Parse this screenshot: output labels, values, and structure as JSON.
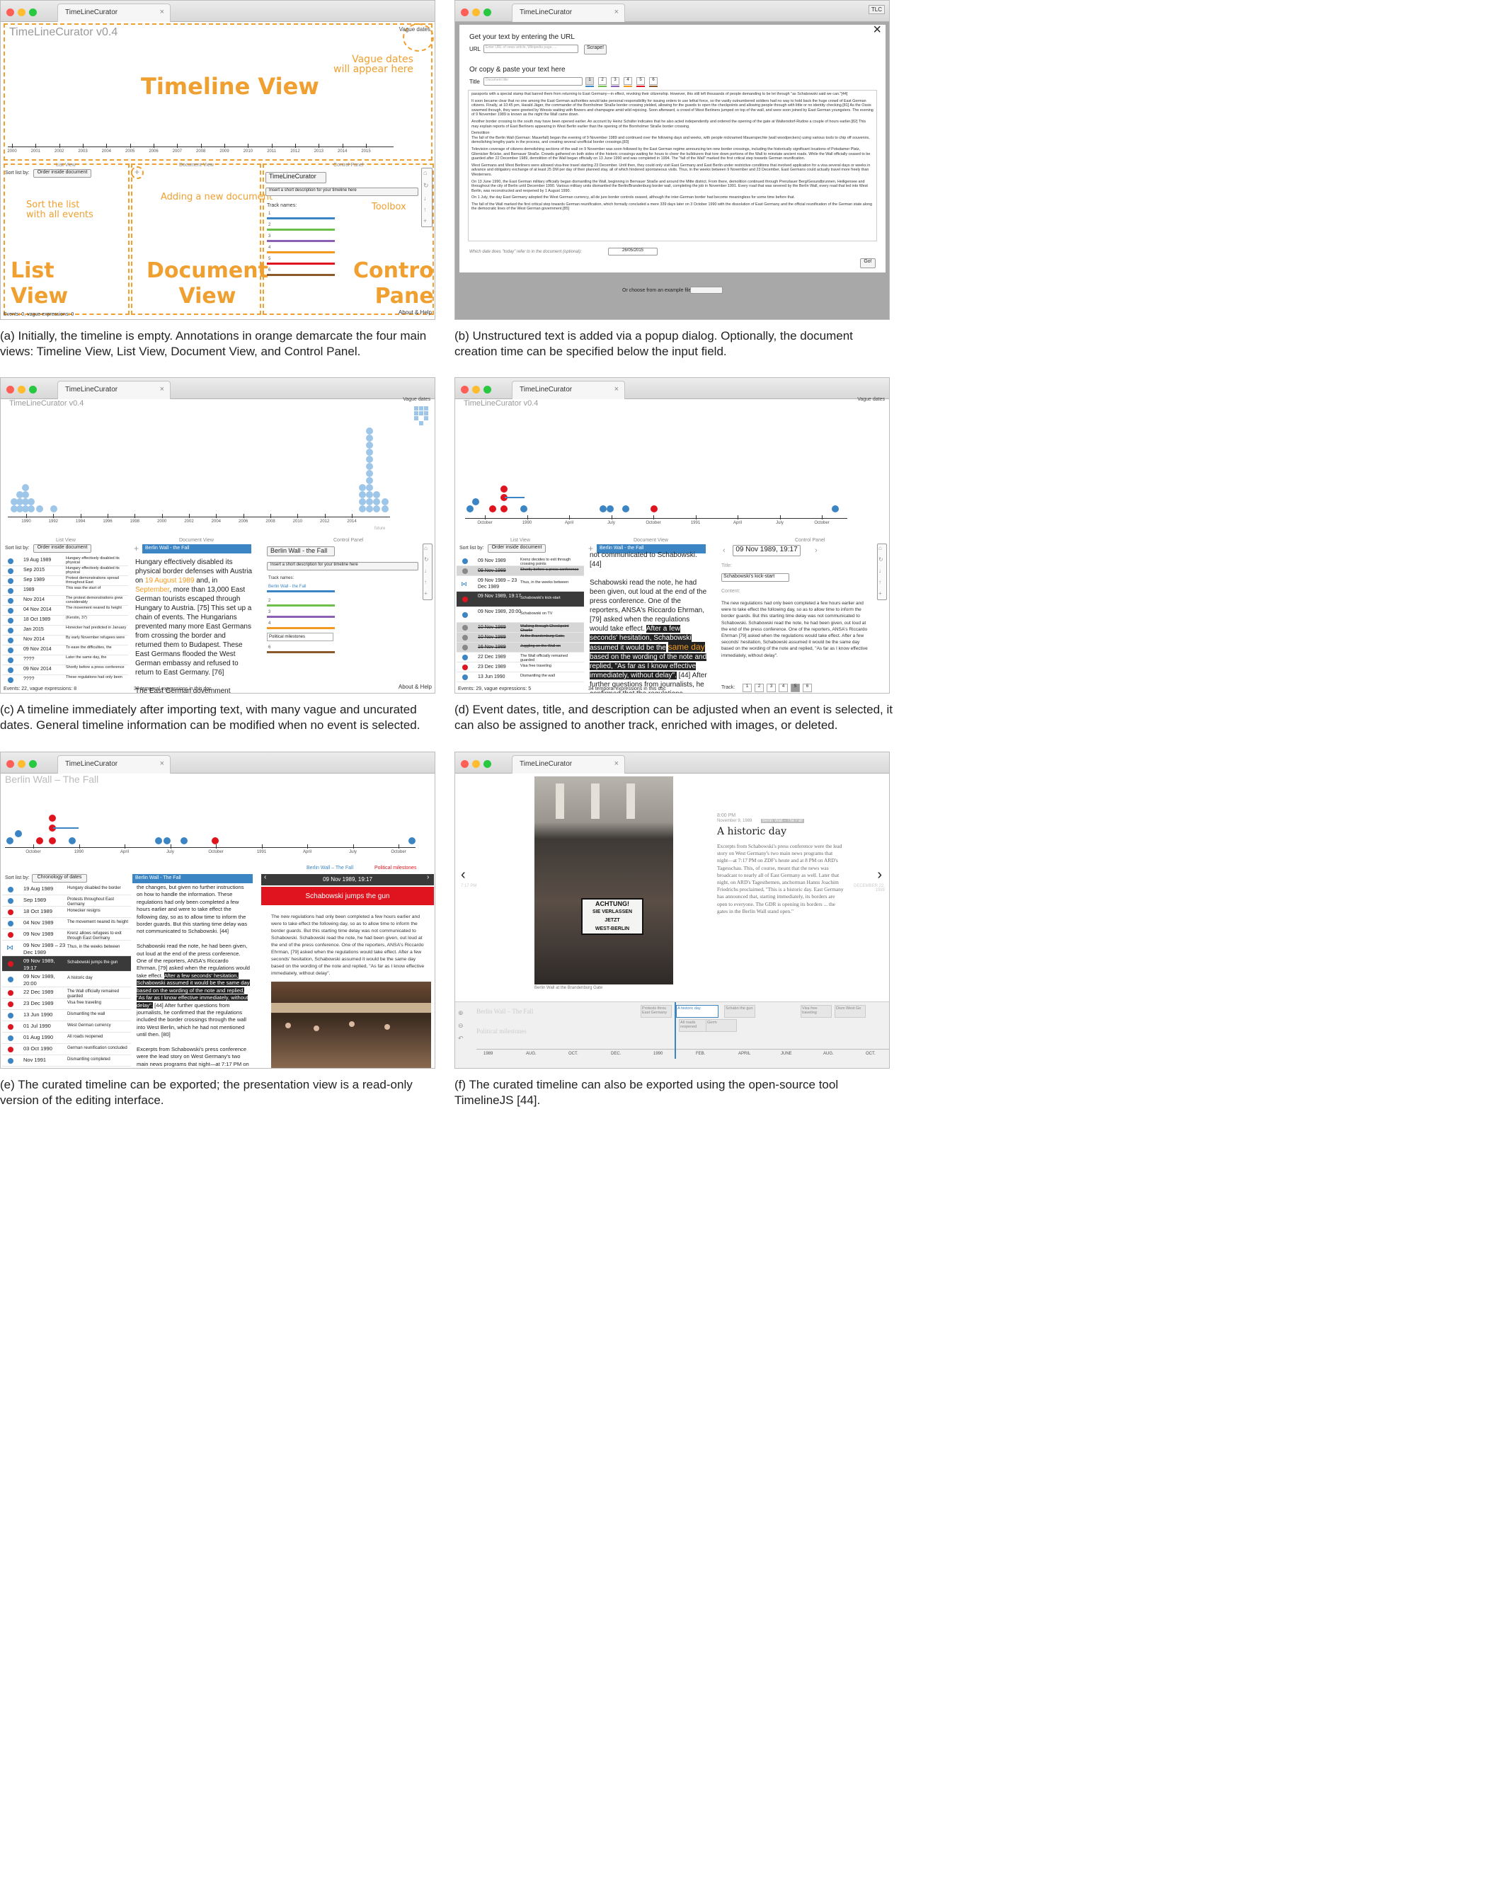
{
  "app": {
    "tab_label": "TimeLineCurator",
    "title": "TimeLineCurator v0.4",
    "vague_dates": "Vague dates",
    "close_icon": "×",
    "list_view": "List View",
    "document_view": "Document View",
    "control_panel": "Control Panel",
    "sort_label": "Sort list by:",
    "sort_value": "Order inside document",
    "description_placeholder": "Insert a short description for your timeline here",
    "track_names_label": "Track names:",
    "about_help": "About & Help"
  },
  "panel_a": {
    "axis_years": [
      "2000",
      "2001",
      "2002",
      "2003",
      "2004",
      "2005",
      "2006",
      "2007",
      "2008",
      "2009",
      "2010",
      "2011",
      "2012",
      "2013",
      "2014",
      "2015"
    ],
    "annotations": {
      "vague": "Vague dates\nwill appear here",
      "timeline": "Timeline View",
      "sort": "Sort the list\nwith all events",
      "adding": "Adding a new document",
      "toolbox": "Toolbox",
      "list": "List\nView",
      "document": "Document\nView",
      "control": "Control\nPanel"
    },
    "timeline_name": "TimeLineCurator",
    "track_numbers": [
      "1",
      "2",
      "3",
      "4",
      "5",
      "6"
    ],
    "status": "Events: 0, vague expressions: 0",
    "caption": "(a) Initially, the timeline is empty. Annotations in orange demarcate the four main views: Timeline View, List View, Document View, and Control Panel."
  },
  "panel_b": {
    "heading_url": "Get your text by entering the URL",
    "url_label": "URL",
    "url_placeholder": "Enter URL of news article, Wikipedia page, ...",
    "scrape_button": "Scrape!",
    "heading_paste": "Or copy & paste your text here",
    "title_label": "Title",
    "title_placeholder": "Document title",
    "tracks": [
      "1",
      "2",
      "3",
      "4",
      "5",
      "6"
    ],
    "text_paragraphs": [
      "passports with a special stamp that barred them from returning to East Germany—in effect, revoking their citizenship. However, this still left thousands of people demanding to be let through \"as Schabowski said we can.\"[44]",
      "It soon became clear that no one among the East German authorities would take personal responsibility for issuing orders to use lethal force, so the vastly outnumbered soldiers had no way to hold back the huge crowd of East German citizens. Finally, at 10:45 pm, Harald Jäger, the commander of the Bornholmer Straße border crossing yielded, allowing for the guards to open the checkpoints and allowing people through with little or no identity checking.[81] As the Ossis swarmed through, they were greeted by Wessis waiting with flowers and champagne amid wild rejoicing. Soon afterward, a crowd of West Berliners jumped on top of the wall, and were soon joined by East German youngsters. The evening of 9 November 1989 is known as the night the Wall came down.",
      "Another border crossing to the south may have been opened earlier. An account by Heinz Schäfer indicates that he also acted independently and ordered the opening of the gate at Waltersdorf-Rudow a couple of hours earlier.[82] This may explain reports of East Berliners appearing in West Berlin earlier than the opening of the Bornholmer Straße border crossing.",
      "Demolition\nThe fall of the Berlin Wall (German: Mauerfall) began the evening of 9 November 1989 and continued over the following days and weeks, with people nicknamed Mauerspechte (wall woodpeckers) using various tools to chip off souvenirs, demolishing lengthy parts in the process, and creating several unofficial border crossings.[83]",
      "Television coverage of citizens demolishing sections of the wall on 9 November was soon followed by the East German regime announcing ten new border crossings, including the historically significant locations of Potsdamer Platz, Glienicker Brücke, and Bernauer Straße. Crowds gathered on both sides of the historic crossings waiting for hours to cheer the bulldozers that tore down portions of the Wall to reinstate ancient roads. While the Wall officially ceased to be guarded after 22 December 1989, demolition of the Wall began officially on 13 June 1990 and was completed in 1994. The \"fall of the Wall\" marked the first critical step towards German reunification.",
      "West Germans and West Berliners were allowed visa-free travel starting 23 December. Until then, they could only visit East Germany and East Berlin under restrictive conditions that involved application for a visa several days or weeks in advance and obligatory exchange of at least 25 DM per day of their planned stay, all of which hindered spontaneous visits. Thus, in the weeks between 9 November and 23 December, East Germans could actually travel more freely than Westerners.",
      "On 13 June 1990, the East German military officially began dismantling the Wall, beginning in Bernauer Straße and around the Mitte district. From there, demolition continued through Prenzlauer Berg/Gesundbrunnen, Heiligensee and throughout the city of Berlin until December 1990. Various military units dismantled the Berlin/Brandenburg border wall, completing the job in November 1991. Every road that was severed by the Berlin Wall, every road that led into West Berlin, was reconstructed and reopened by 1 August 1990.",
      "On 1 July, the day East Germany adopted the West German currency, all de jure border controls ceased, although the inter-German border had become meaningless for some time before that.",
      "The fall of the Wall marked the first critical step towards German reunification, which formally concluded a mere 339 days later on 3 October 1990 with the dissolution of East Germany and the official reunification of the German state along the democratic lines of the West German government.[85]"
    ],
    "date_question": "Which date does \"today\" refer to in the document (optional):",
    "date_value": "26/05/2015",
    "go_button": "Go!",
    "example_label": "Or choose from an example file",
    "tlc_badge": "TLC",
    "caption": "(b) Unstructured text is added via a popup dialog. Optionally, the document creation time can be specified below the input field."
  },
  "panel_c": {
    "axis_years": [
      "1990",
      "1992",
      "1994",
      "1996",
      "1998",
      "2000",
      "2002",
      "2004",
      "2006",
      "2008",
      "2010",
      "2012",
      "2014"
    ],
    "axis_far": "future",
    "doc_tab": "Berlin Wall - the Fall",
    "timeline_name": "Berlin Wall - the Fall",
    "track1": "Berlin Wall - the Fall",
    "track5": "Political milestones",
    "track_numbers": [
      "2",
      "3",
      "4",
      "6"
    ],
    "list": [
      {
        "date": "19 Aug 1989",
        "desc": "Hungary effectively disabled its physical"
      },
      {
        "date": "Sep 2015",
        "desc": "Hungary effectively disabled its physical"
      },
      {
        "date": "Sep 1989",
        "desc": "Protest demonstrations spread throughout East"
      },
      {
        "date": "1989",
        "desc": "This was the start of"
      },
      {
        "date": "Nov 2014",
        "desc": "The protest demonstrations grew considerably"
      },
      {
        "date": "04 Nov 2014",
        "desc": "The movement neared its height"
      },
      {
        "date": "18 Oct 1989",
        "desc": "(Kerstin, 37)"
      },
      {
        "date": "Jan 2015",
        "desc": "Honecker had predicted in January"
      },
      {
        "date": "Nov 2014",
        "desc": "By early November refugees were"
      },
      {
        "date": "09 Nov 2014",
        "desc": "To ease the difficulties, the"
      },
      {
        "date": "????",
        "desc": "Later the same day, the"
      },
      {
        "date": "09 Nov 2014",
        "desc": "Shortly before a press conference"
      },
      {
        "date": "????",
        "desc": "These regulations had only been"
      }
    ],
    "doc_text_pre": "Hungary effectively disabled its physical border defenses with Austria on ",
    "doc_date1": "19 August 1989",
    "doc_text_mid": " and, in ",
    "doc_date2": "September",
    "doc_text_post": ", more than 13,000 East German tourists escaped through Hungary to Austria. [75] This set up a chain of events. The Hungarians prevented many more East Germans from crossing the border and returned them to Budapest. These East Germans flooded the West German embassy and refused to return to East Germany. [76]",
    "doc_text_end": "The East German government",
    "status_list": "Events: 22, vague expressions: 8",
    "status_doc": "30 temporal expressions in this doc",
    "caption": "(c) A timeline immediately after importing text, with many vague and uncurated dates. General timeline information can be modified when no event is selected."
  },
  "panel_d": {
    "axis_labels": [
      "October",
      "1990",
      "April",
      "July",
      "October",
      "1991",
      "April",
      "July",
      "October"
    ],
    "list": [
      {
        "date": "09 Nov 1989",
        "desc": "Krenz decides to exit through crossing points",
        "state": "ok"
      },
      {
        "date": "09 Nov 1989",
        "desc": "Shortly before a press conference",
        "state": "struck"
      },
      {
        "date": "09 Nov 1989 – 23 Dec 1989",
        "desc": "Thus, in the weeks between",
        "state": "range"
      },
      {
        "date": "09 Nov 1989, 19:17",
        "desc": "Schabowski's kick-start",
        "state": "selected"
      },
      {
        "date": "09 Nov 1989, 20:00",
        "desc": "Schabowski on TV",
        "state": "ok"
      },
      {
        "date": "10 Nov 1989",
        "desc": "Walking through Checkpoint Charlie",
        "state": "struck"
      },
      {
        "date": "10 Nov 1989",
        "desc": "At the Brandenburg Gate,",
        "state": "struck"
      },
      {
        "date": "16 Nov 1989",
        "desc": "Juggling on the Wall on",
        "state": "struck"
      },
      {
        "date": "22 Dec 1989",
        "desc": "The Wall officially remained guarded",
        "state": "ok"
      },
      {
        "date": "23 Dec 1989",
        "desc": "Visa free traveling",
        "state": "red"
      },
      {
        "date": "13 Jun 1990",
        "desc": "Dismantling the wall",
        "state": "ok"
      }
    ],
    "list_top": "Hungary ... physical",
    "doc_tab": "Berlin Wall - the Fall",
    "doc_top": "not communicated to Schabowski. [44]",
    "doc_p1": "Schabowski read the note, he had been given, out loud at the end of the press conference. One of the reporters, ANSA's Riccardo Ehrman, [79] asked when the regulations would take effect.",
    "doc_hl1": "After a few seconds' hesitation, Schabowski assumed it would be the",
    "doc_same_day": "same day",
    "doc_hl2": "based on the wording of the note and replied, \"As far as I know effective immediately, without delay\".",
    "doc_p2": "[44] After further questions from journalists, he confirmed that the regulations included the border crossings through the wall",
    "event_date": "09 Nov 1989, 19:17",
    "title_label": "Title:",
    "title_value": "Schabowski's kick-start",
    "content_label": "Content:",
    "content": "The new regulations had only been completed a few hours earlier and were to take effect the following day, so as to allow time to inform the border guards. But this starting time delay was not communicated to Schabowski. Schabowski read the note, he had been given, out loud at the end of the press conference. One of the reporters, ANSA's Riccardo Ehrman [79] asked when the regulations would take effect. After a few seconds' hesitation, Schabowski assumed it would be the same day based on the wording of the note and replied, \"As far as I know effective immediately, without delay\".",
    "track_label": "Track:",
    "tracks": [
      "1",
      "2",
      "3",
      "4",
      "5",
      "6"
    ],
    "status_list": "Events: 29, vague expressions: 5",
    "status_doc": "34 temporal expressions in this doc",
    "caption": "(d) Event dates, title, and description can be adjusted when an event is selected, it can also be assigned to another track, enriched with images, or deleted."
  },
  "panel_e": {
    "title": "Berlin Wall – The Fall",
    "axis_labels": [
      "October",
      "1990",
      "April",
      "July",
      "October",
      "1991",
      "April",
      "July",
      "October"
    ],
    "sort_value": "Chronology of dates",
    "doc_tab": "Berlin Wall - The Fall",
    "legend1": "Berlin Wall – The Fall",
    "legend2": "Political milestones",
    "list": [
      {
        "date": "19 Aug 1989",
        "desc": "Hungary disabled the border",
        "c": "blue"
      },
      {
        "date": "Sep 1989",
        "desc": "Protests throughout East Germany",
        "c": "blue"
      },
      {
        "date": "18 Oct 1989",
        "desc": "Honecker resigns",
        "c": "red"
      },
      {
        "date": "04 Nov 1989",
        "desc": "The movement neared its height",
        "c": "blue"
      },
      {
        "date": "09 Nov 1989",
        "desc": "Krenz allows refugees to exit through East Germany",
        "c": "red"
      },
      {
        "date": "09 Nov 1989 – 23 Dec 1989",
        "desc": "Thus, in the weeks between",
        "c": "range"
      },
      {
        "date": "09 Nov 1989, 19:17",
        "desc": "Schabowski jumps the gun",
        "c": "sel"
      },
      {
        "date": "09 Nov 1989, 20:00",
        "desc": "A historic day",
        "c": "blue"
      },
      {
        "date": "22 Dec 1989",
        "desc": "The Wall officially remained guarded",
        "c": "red"
      },
      {
        "date": "23 Dec 1989",
        "desc": "Visa free traveling",
        "c": "red"
      },
      {
        "date": "13 Jun 1990",
        "desc": "Dismantling the wall",
        "c": "blue"
      },
      {
        "date": "01 Jul 1990",
        "desc": "West German currency",
        "c": "red"
      },
      {
        "date": "01 Aug 1990",
        "desc": "All roads reopened",
        "c": "blue"
      },
      {
        "date": "03 Oct 1990",
        "desc": "German reunification concluded",
        "c": "red"
      },
      {
        "date": "Nov 1991",
        "desc": "Dismantling completed",
        "c": "blue"
      }
    ],
    "doc_p1": "the changes, but given no further instructions on how to handle the information. These regulations had only been completed a few hours earlier and were to take effect the following day, so as to allow time to inform the border guards. But this starting time delay was not communicated to Schabowski. [44]",
    "doc_p2": "Schabowski read the note, he had been given, out loud at the end of the press conference. One of the reporters, ANSA's Riccardo Ehrman, [79] asked when the regulations would take effect.",
    "doc_hl": "After a few seconds' hesitation, Schabowski assumed it would be the same day based on the wording of the note and replied, \"As far as I know effective immediately, without delay\".",
    "doc_p3": "[44] After further questions from journalists, he confirmed that the regulations included the border crossings through the wall into West Berlin, which he had not mentioned until then. [80]",
    "doc_p4": "Excerpts from Schabowski's press conference were the lead story on West Germany's two main news programs that night—at 7:17 PM on ZDF's heute and at 8 PM on ARD's Tagesschau. This, of course, meant that the news was broadcast to nearly all of East Germany as well. Later that night, on ARD's Tagesthemen, anchorman Hanns Joachim Friedrichs",
    "event_date": "09 Nov 1989, 19:17",
    "event_title": "Schabowski jumps the gun",
    "event_text": "The new regulations had only been completed a few hours earlier and were to take effect the following day, so as to allow time to inform the border guards. But this starting time delay was not communicated to Schabowski. Schabowski read the note, he had been given, out loud at the end of the press conference. One of the reporters, ANSA's Riccardo Ehrman, [79] asked when the regulations would take effect. After a few seconds' hesitation, Schabowski assumed it would be the same day based on the wording of the note and replied, \"As far as I know effective immediately, without delay\".",
    "caption": "(e) The curated timeline can be exported; the presentation view is a read-only version of the editing interface."
  },
  "panel_f": {
    "time": "8:00 PM",
    "date": "November 9, 1989",
    "tag": "Berlin Wall – The Fall",
    "heading": "A historic day",
    "body": "Excerpts from Schabowski's press conference were the lead story on West Germany's two main news programs that night—at 7:17 PM on ZDF's heute and at 8 PM on ARD's Tagesschau. This, of course, meant that the news was broadcast to nearly all of East Germany as well. Later that night, on ARD's Tagesthemen, anchorman Hanns Joachim Friedrichs proclaimed, \"This is a historic day. East Germany has announced that, starting immediately, its borders are open to everyone. The GDR is opening its borders ... the gates in the Berlin Wall stand open.\"",
    "photo_caption": "Berlin Wall at the Brandenburg Gate",
    "sign_line1": "ACHTUNG!",
    "sign_line2": "SIE VERLASSEN",
    "sign_line3": "JETZT",
    "sign_line4": "WEST-BERLIN",
    "prev_time": "7:17 PM",
    "next_label": "DECEMBER 22, 1989",
    "nav_track1": "Berlin Wall – The Fall",
    "nav_track2": "Political milestones",
    "nav_items": [
      "Protests throu East Germany",
      "A historic day",
      "Schabo the gun",
      "Visa free traveling",
      "Dism West Ge",
      "All roads reopened",
      "Germ"
    ],
    "nav_axis": [
      "1989",
      "AUG.",
      "OCT.",
      "DEC.",
      "1990",
      "FEB.",
      "APRIL",
      "JUNE",
      "AUG.",
      "OCT."
    ],
    "caption": "(f) The curated timeline can also be exported using the open-source tool TimelineJS [44]."
  },
  "colors": {
    "accent_orange": "#f29a1f",
    "event_blue": "#3b85c4",
    "event_red": "#e0141e",
    "track_colors": [
      "#3b85c4",
      "#6cc04a",
      "#8a5fb4",
      "#f29a1f",
      "#e0141e",
      "#8b5a2b"
    ]
  }
}
